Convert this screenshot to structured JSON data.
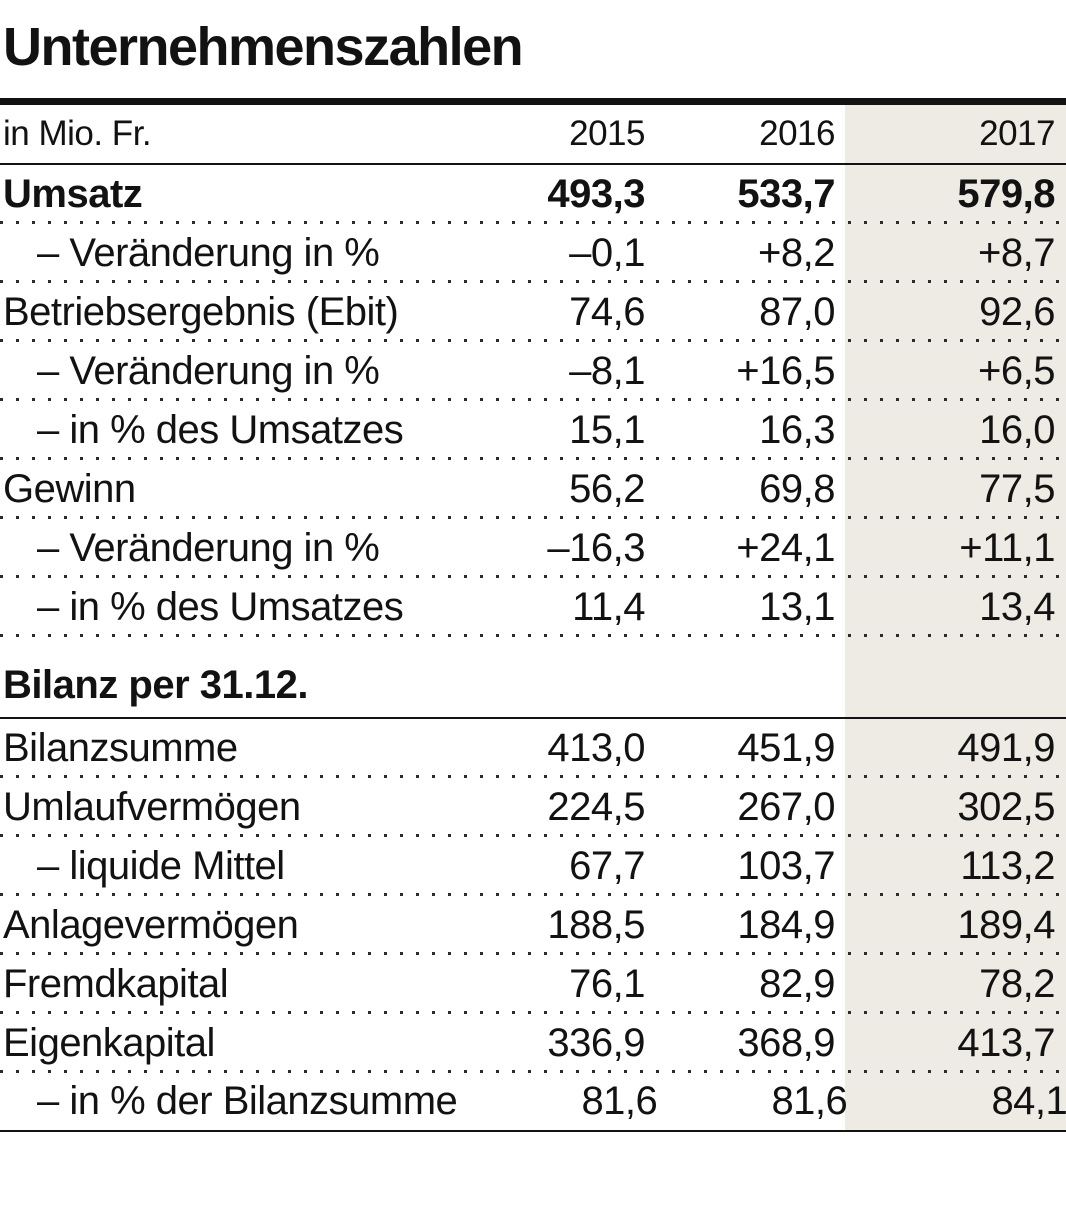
{
  "title": "Unternehmenszahlen",
  "colors": {
    "highlight": "#edebe4",
    "text": "#121212"
  },
  "chart_data": {
    "type": "table",
    "title": "Unternehmenszahlen",
    "unit_label": "in Mio. Fr.",
    "columns": [
      "2015",
      "2016",
      "2017"
    ],
    "highlighted_column": "2017",
    "sections": [
      {
        "heading": "",
        "rows": [
          {
            "label": "Umsatz",
            "bold": true,
            "indent": false,
            "values": [
              "493,3",
              "533,7",
              "579,8"
            ]
          },
          {
            "label": "– Veränderung in %",
            "bold": false,
            "indent": true,
            "values": [
              "–0,1",
              "+8,2",
              "+8,7"
            ]
          },
          {
            "label": "Betriebsergebnis (Ebit)",
            "bold": false,
            "indent": false,
            "values": [
              "74,6",
              "87,0",
              "92,6"
            ]
          },
          {
            "label": "– Veränderung in %",
            "bold": false,
            "indent": true,
            "values": [
              "–8,1",
              "+16,5",
              "+6,5"
            ]
          },
          {
            "label": "– in % des Umsatzes",
            "bold": false,
            "indent": true,
            "values": [
              "15,1",
              "16,3",
              "16,0"
            ]
          },
          {
            "label": "Gewinn",
            "bold": false,
            "indent": false,
            "values": [
              "56,2",
              "69,8",
              "77,5"
            ]
          },
          {
            "label": "– Veränderung in %",
            "bold": false,
            "indent": true,
            "values": [
              "–16,3",
              "+24,1",
              "+11,1"
            ]
          },
          {
            "label": "– in % des Umsatzes",
            "bold": false,
            "indent": true,
            "values": [
              "11,4",
              "13,1",
              "13,4"
            ]
          }
        ]
      },
      {
        "heading": "Bilanz per 31.12.",
        "rows": [
          {
            "label": "Bilanzsumme",
            "bold": false,
            "indent": false,
            "values": [
              "413,0",
              "451,9",
              "491,9"
            ]
          },
          {
            "label": "Umlaufvermögen",
            "bold": false,
            "indent": false,
            "values": [
              "224,5",
              "267,0",
              "302,5"
            ]
          },
          {
            "label": "– liquide Mittel",
            "bold": false,
            "indent": true,
            "values": [
              "67,7",
              "103,7",
              "113,2"
            ]
          },
          {
            "label": "Anlagevermögen",
            "bold": false,
            "indent": false,
            "values": [
              "188,5",
              "184,9",
              "189,4"
            ]
          },
          {
            "label": "Fremdkapital",
            "bold": false,
            "indent": false,
            "values": [
              "76,1",
              "82,9",
              "78,2"
            ]
          },
          {
            "label": "Eigenkapital",
            "bold": false,
            "indent": false,
            "values": [
              "336,9",
              "368,9",
              "413,7"
            ]
          },
          {
            "label": "– in % der Bilanzsumme",
            "bold": false,
            "indent": true,
            "values": [
              "81,6",
              "81,6",
              "84,1"
            ]
          }
        ]
      }
    ]
  }
}
